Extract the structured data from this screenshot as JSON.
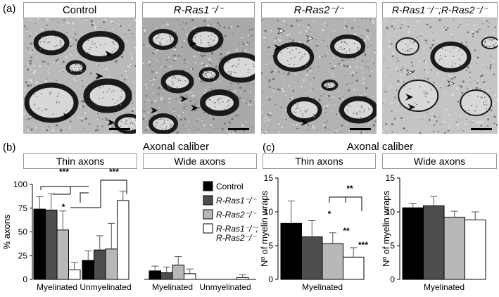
{
  "panel_a": {
    "letter": "(a)",
    "images": [
      {
        "label": "Control",
        "italic": false,
        "tone": "#b9b9b9"
      },
      {
        "label": "R-Ras1⁻/⁻",
        "italic": true,
        "tone": "#a9a9a9"
      },
      {
        "label": "R-Ras2⁻/⁻",
        "italic": true,
        "tone": "#b3b3b3"
      },
      {
        "label": "R-Ras1⁻/⁻;R-Ras2⁻/⁻",
        "italic": true,
        "tone": "#c4c4c4"
      }
    ]
  },
  "panel_b": {
    "letter": "(b)",
    "title": "Axonal caliber",
    "thin_header": "Thin axons",
    "wide_header": "Wide axons"
  },
  "panel_c": {
    "letter": "(c)",
    "title": "Axonal caliber",
    "thin_header": "Thin axons",
    "wide_header": "Wide axons"
  },
  "legend": {
    "entries": [
      {
        "label": "Control",
        "color": "#000000"
      },
      {
        "label": "R-Ras1⁻/⁻",
        "color": "#4d4d4d"
      },
      {
        "label": "R-Ras2⁻/⁻",
        "color": "#b8b8b8"
      },
      {
        "label": "R-Ras1⁻/⁻;",
        "label2": "R-Ras2⁻/⁻",
        "color": "#ffffff"
      }
    ]
  },
  "colors": {
    "control": "#000000",
    "ras1": "#4d4d4d",
    "ras2": "#b8b8b8",
    "double": "#ffffff"
  },
  "chart_data": [
    {
      "type": "bar",
      "panel": "b-thin",
      "ylabel": "% axons",
      "ylim": [
        0,
        100
      ],
      "yticks": [
        "0",
        "25",
        "50",
        "75",
        "100"
      ],
      "categories": [
        "Myelinated",
        "Unmyelinated"
      ],
      "series": [
        {
          "name": "Control",
          "values": [
            74,
            20
          ],
          "errors": [
            13,
            10
          ]
        },
        {
          "name": "R-Ras1⁻/⁻",
          "values": [
            73,
            31
          ],
          "errors": [
            17,
            15
          ]
        },
        {
          "name": "R-Ras2⁻/⁻",
          "values": [
            52,
            32
          ],
          "errors": [
            20,
            27
          ]
        },
        {
          "name": "R-Ras1⁻/⁻;R-Ras2⁻/⁻",
          "values": [
            10,
            83
          ],
          "errors": [
            8,
            10
          ]
        }
      ],
      "annotations": [
        "***",
        "*",
        "***"
      ]
    },
    {
      "type": "bar",
      "panel": "b-wide",
      "ylim": [
        0,
        100
      ],
      "categories": [
        "Myelinated",
        "Unmyelinated"
      ],
      "series": [
        {
          "name": "Control",
          "values": [
            9,
            0
          ],
          "errors": [
            5,
            0
          ]
        },
        {
          "name": "R-Ras1⁻/⁻",
          "values": [
            7,
            0
          ],
          "errors": [
            6,
            0
          ]
        },
        {
          "name": "R-Ras2⁻/⁻",
          "values": [
            15,
            0
          ],
          "errors": [
            9,
            0
          ]
        },
        {
          "name": "R-Ras1⁻/⁻;R-Ras2⁻/⁻",
          "values": [
            6,
            2
          ],
          "errors": [
            5,
            3
          ]
        }
      ]
    },
    {
      "type": "bar",
      "panel": "c-thin",
      "ylabel": "Nº of myelin wraps",
      "ylim": [
        0,
        15
      ],
      "yticks": [
        "0",
        "5",
        "10",
        "15"
      ],
      "categories": [
        "Myelinated"
      ],
      "series": [
        {
          "name": "Control",
          "values": [
            8.3
          ],
          "errors": [
            3.3
          ]
        },
        {
          "name": "R-Ras1⁻/⁻",
          "values": [
            6.3
          ],
          "errors": [
            2.4
          ]
        },
        {
          "name": "R-Ras2⁻/⁻",
          "values": [
            5.3
          ],
          "errors": [
            1.6
          ]
        },
        {
          "name": "R-Ras1⁻/⁻;R-Ras2⁻/⁻",
          "values": [
            3.3
          ],
          "errors": [
            1.4
          ]
        }
      ],
      "annotations": [
        "*",
        "**",
        "***",
        "**"
      ]
    },
    {
      "type": "bar",
      "panel": "c-wide",
      "ylabel": "Nº of myelin wraps",
      "ylim": [
        0,
        15
      ],
      "yticks": [
        "0",
        "5",
        "10",
        "15"
      ],
      "categories": [
        "Myelinated"
      ],
      "series": [
        {
          "name": "Control",
          "values": [
            10.6
          ],
          "errors": [
            0.6
          ]
        },
        {
          "name": "R-Ras1⁻/⁻",
          "values": [
            10.9
          ],
          "errors": [
            1.4
          ]
        },
        {
          "name": "R-Ras2⁻/⁻",
          "values": [
            9.2
          ],
          "errors": [
            0.9
          ]
        },
        {
          "name": "R-Ras1⁻/⁻;R-Ras2⁻/⁻",
          "values": [
            8.8
          ],
          "errors": [
            1.2
          ]
        }
      ]
    }
  ]
}
